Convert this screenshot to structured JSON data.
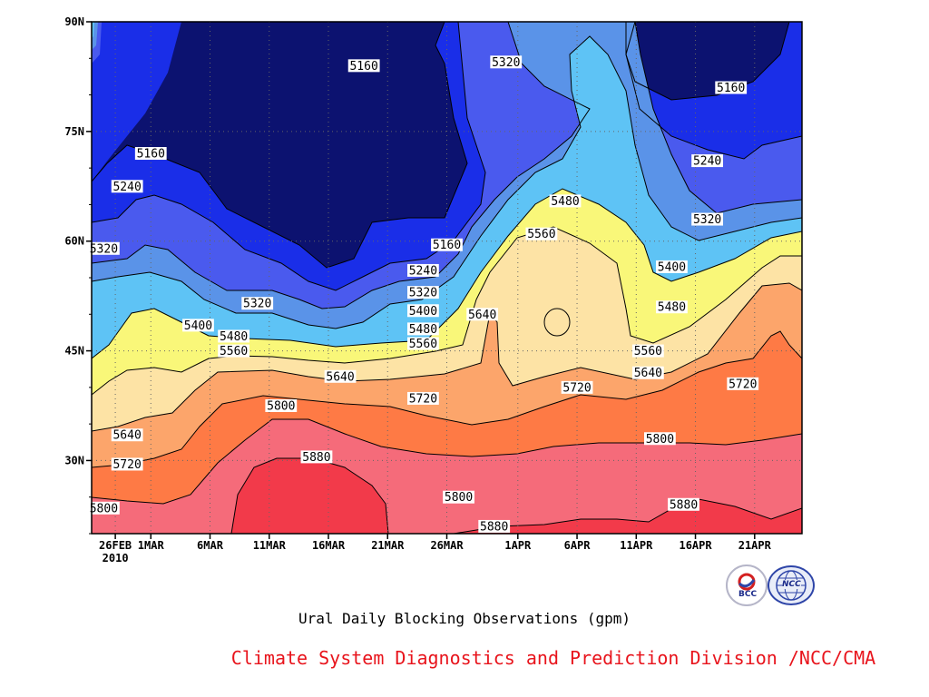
{
  "chart_data": {
    "type": "contour",
    "title": "Ural Daily Blocking Observations (gpm)",
    "x_axis": {
      "ticks": [
        "26FEB",
        "1MAR",
        "6MAR",
        "11MAR",
        "16MAR",
        "21MAR",
        "26MAR",
        "1APR",
        "6APR",
        "11APR",
        "16APR",
        "21APR"
      ],
      "year_label": "2010",
      "range": [
        "2010-02-24",
        "2010-04-25"
      ]
    },
    "y_axis": {
      "ticks": [
        "30N",
        "45N",
        "60N",
        "75N",
        "90N"
      ],
      "range": [
        20,
        90
      ],
      "unit": "latitude (°N)"
    },
    "grid": "dotted",
    "levels": [
      5160,
      5240,
      5320,
      5400,
      5480,
      5560,
      5640,
      5720,
      5800,
      5880
    ],
    "colors": [
      "#0c1270",
      "#1a2ee8",
      "#4a5aee",
      "#5a93e8",
      "#5ec3f5",
      "#f9f779",
      "#fde3a5",
      "#fca56b",
      "#fe7a45",
      "#f56b7a",
      "#f23a4a"
    ],
    "labels": [
      {
        "text": "5160",
        "date": "2010-03-19",
        "lat": 84
      },
      {
        "text": "5320",
        "date": "2010-03-31",
        "lat": 84.5
      },
      {
        "text": "5160",
        "date": "2010-04-19",
        "lat": 81
      },
      {
        "text": "5160",
        "date": "2010-02-29",
        "lat": 72
      },
      {
        "text": "5240",
        "date": "2010-02-27",
        "lat": 67.5
      },
      {
        "text": "5480",
        "date": "2010-04-05",
        "lat": 65.5
      },
      {
        "text": "5240",
        "date": "2010-04-17",
        "lat": 71
      },
      {
        "text": "5320",
        "date": "2010-04-17",
        "lat": 63
      },
      {
        "text": "5560",
        "date": "2010-04-03",
        "lat": 61
      },
      {
        "text": "5160",
        "date": "2010-03-26",
        "lat": 59.5
      },
      {
        "text": "5320",
        "date": "2010-02-23",
        "lat": 59
      },
      {
        "text": "5240",
        "date": "2010-03-24",
        "lat": 56
      },
      {
        "text": "5400",
        "date": "2010-04-14",
        "lat": 56.5
      },
      {
        "text": "5320",
        "date": "2010-03-24",
        "lat": 53
      },
      {
        "text": "5480",
        "date": "2010-04-14",
        "lat": 51
      },
      {
        "text": "5320",
        "date": "2010-03-10",
        "lat": 51.5
      },
      {
        "text": "5400",
        "date": "2010-03-24",
        "lat": 50.5
      },
      {
        "text": "5640",
        "date": "2010-03-29",
        "lat": 50
      },
      {
        "text": "5400",
        "date": "2010-03-05",
        "lat": 48.5
      },
      {
        "text": "5480",
        "date": "2010-03-24",
        "lat": 48
      },
      {
        "text": "5480",
        "date": "2010-03-08",
        "lat": 47
      },
      {
        "text": "5560",
        "date": "2010-03-24",
        "lat": 46
      },
      {
        "text": "5560",
        "date": "2010-03-08",
        "lat": 45
      },
      {
        "text": "5560",
        "date": "2010-04-12",
        "lat": 45
      },
      {
        "text": "5640",
        "date": "2010-03-17",
        "lat": 41.5
      },
      {
        "text": "5640",
        "date": "2010-04-12",
        "lat": 42
      },
      {
        "text": "5720",
        "date": "2010-04-06",
        "lat": 40
      },
      {
        "text": "5720",
        "date": "2010-04-20",
        "lat": 40.5
      },
      {
        "text": "5720",
        "date": "2010-03-24",
        "lat": 38.5
      },
      {
        "text": "5800",
        "date": "2010-03-12",
        "lat": 37.5
      },
      {
        "text": "5640",
        "date": "2010-02-27",
        "lat": 33.5
      },
      {
        "text": "5800",
        "date": "2010-04-13",
        "lat": 33
      },
      {
        "text": "5720",
        "date": "2010-02-27",
        "lat": 29.5
      },
      {
        "text": "5880",
        "date": "2010-03-15",
        "lat": 30.5
      },
      {
        "text": "5800",
        "date": "2010-03-27",
        "lat": 25
      },
      {
        "text": "5800",
        "date": "2010-02-25",
        "lat": 23.5
      },
      {
        "text": "5880",
        "date": "2010-04-15",
        "lat": 24
      },
      {
        "text": "5880",
        "date": "2010-03-30",
        "lat": 21
      }
    ]
  },
  "footer": {
    "credit": "Climate System Diagnostics and Prediction Division /NCC/CMA"
  },
  "logos": {
    "bcc_text": "BCC",
    "ncc_text": "NCC",
    "bcc_color": "#d42020",
    "ncc_color": "#2e45a8"
  }
}
